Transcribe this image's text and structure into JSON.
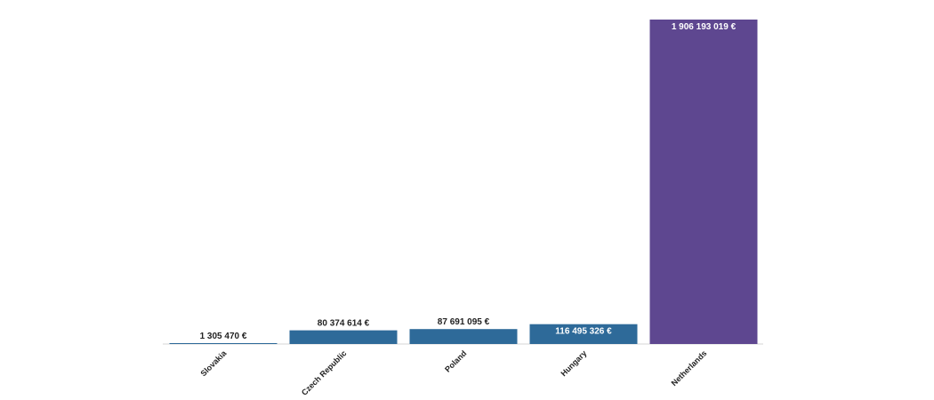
{
  "chart_data": {
    "type": "bar",
    "title": "",
    "xlabel": "",
    "ylabel": "",
    "categories": [
      "Slovakia",
      "Czech Republic",
      "Poland",
      "Hungary",
      "Netherlands"
    ],
    "values": [
      1305470,
      80374614,
      87691095,
      116495326,
      1906193019
    ],
    "value_labels": [
      "1 305 470 €",
      "80 374 614 €",
      "87 691 095 €",
      "116 495 326 €",
      "1 906 193 019 €"
    ],
    "ylim": [
      0,
      1906193019
    ],
    "grid": false,
    "legend": "none",
    "colors": [
      "#2e6a99",
      "#2e6a99",
      "#2e6a99",
      "#2e6a99",
      "#5e4790"
    ]
  }
}
